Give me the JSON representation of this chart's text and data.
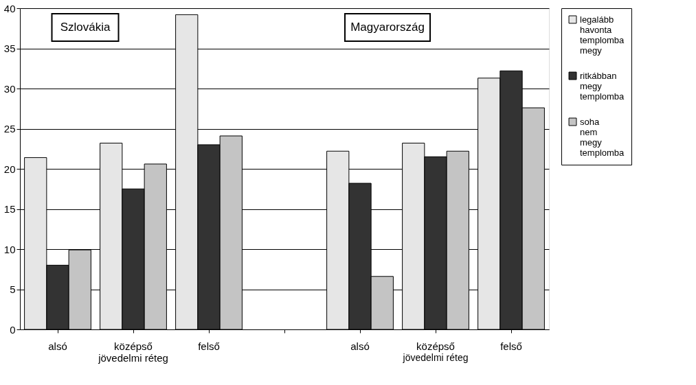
{
  "chart_data": {
    "type": "bar",
    "categories": [
      "alsó",
      "középső",
      "felső",
      null,
      "alsó",
      "középső",
      "felső"
    ],
    "series": [
      {
        "name": "legalább havonta templomba megy",
        "color": "#e6e6e6",
        "values": [
          21.4,
          23.2,
          39.2,
          null,
          22.2,
          23.2,
          31.3
        ]
      },
      {
        "name": "ritkábban megy templomba",
        "color": "#333333",
        "values": [
          8.0,
          17.5,
          23.0,
          null,
          18.2,
          21.5,
          32.2
        ]
      },
      {
        "name": "soha nem megy templomba",
        "color": "#c4c4c4",
        "values": [
          9.9,
          20.6,
          24.1,
          null,
          6.6,
          22.2,
          27.6
        ]
      }
    ],
    "ylim": [
      0,
      40
    ],
    "yticks": [
      0,
      5,
      10,
      15,
      20,
      25,
      30,
      35,
      40
    ],
    "grid": "y",
    "legend": "right",
    "annotations": [
      "Szlovákia",
      "Magyarország",
      "jövedelmi réteg",
      "jövedelmi réteg"
    ]
  }
}
